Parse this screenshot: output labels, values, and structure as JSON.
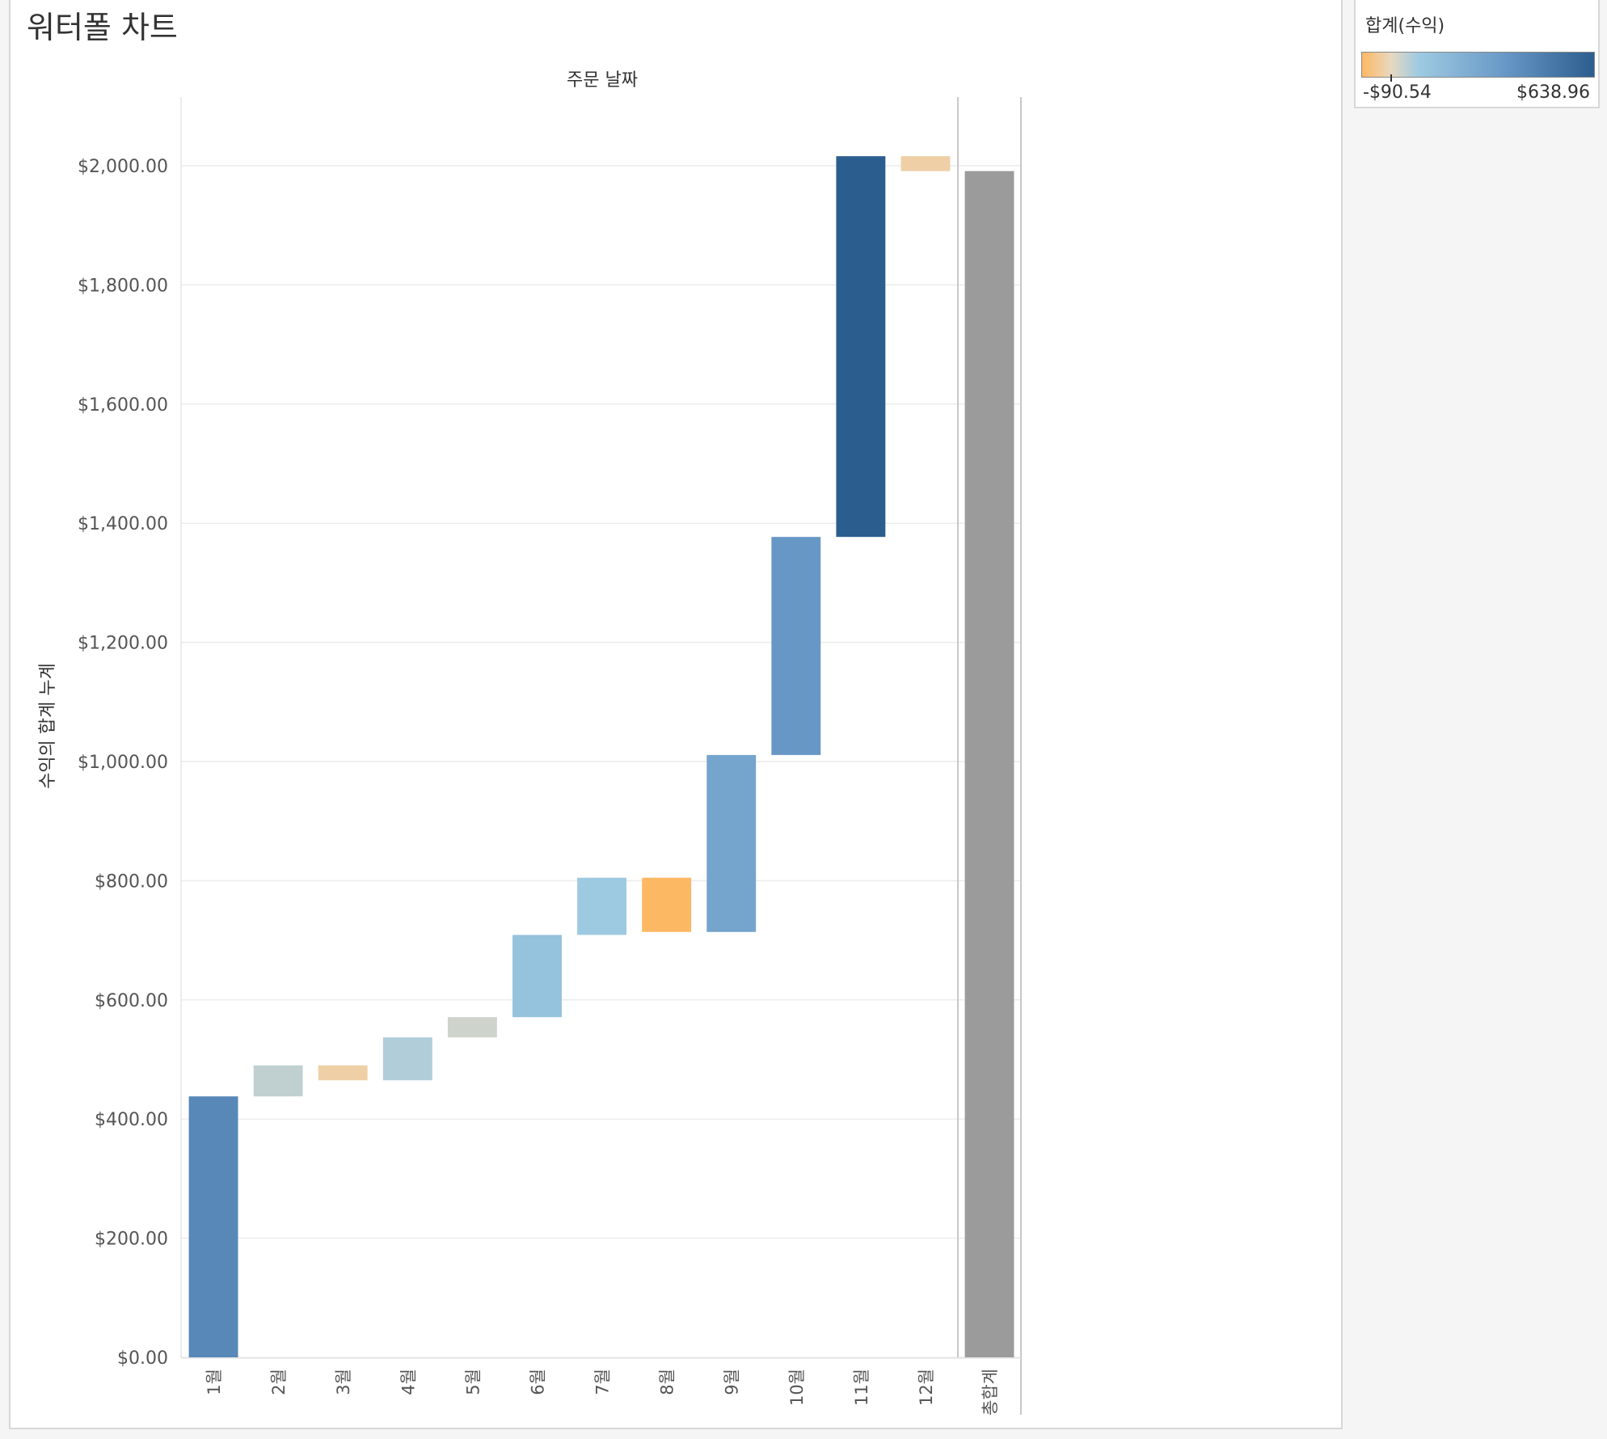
{
  "title": "워터폴 차트",
  "legend": {
    "title": "합계(수익)",
    "min_label": "-$90.54",
    "max_label": "$638.96",
    "min_value": -90.54,
    "max_value": 638.96,
    "colors": [
      "#fdb863",
      "#e8d8bf",
      "#9ecae1",
      "#6a9ac8",
      "#2b5d8e"
    ]
  },
  "chart_data": {
    "type": "waterfall",
    "title": "",
    "column_header": "주문 날짜",
    "xlabel": "",
    "ylabel": "수익의 합계 누계",
    "ylim": [
      0,
      2100
    ],
    "y_ticks": [
      0,
      200,
      400,
      600,
      800,
      1000,
      1200,
      1400,
      1600,
      1800,
      2000
    ],
    "y_tick_labels": [
      "$0.00",
      "$200.00",
      "$400.00",
      "$600.00",
      "$800.00",
      "$1,000.00",
      "$1,200.00",
      "$1,400.00",
      "$1,600.00",
      "$1,800.00",
      "$2,000.00"
    ],
    "grid": true,
    "categories": [
      "1월",
      "2월",
      "3월",
      "4월",
      "5월",
      "6월",
      "7월",
      "8월",
      "9월",
      "10월",
      "11월",
      "12월"
    ],
    "values": [
      438,
      52,
      -25,
      72,
      34,
      138,
      96,
      -91,
      297,
      366,
      639,
      -25
    ],
    "total_label": "총합계",
    "total_value": 1991,
    "total_color": "#9b9b9b"
  }
}
